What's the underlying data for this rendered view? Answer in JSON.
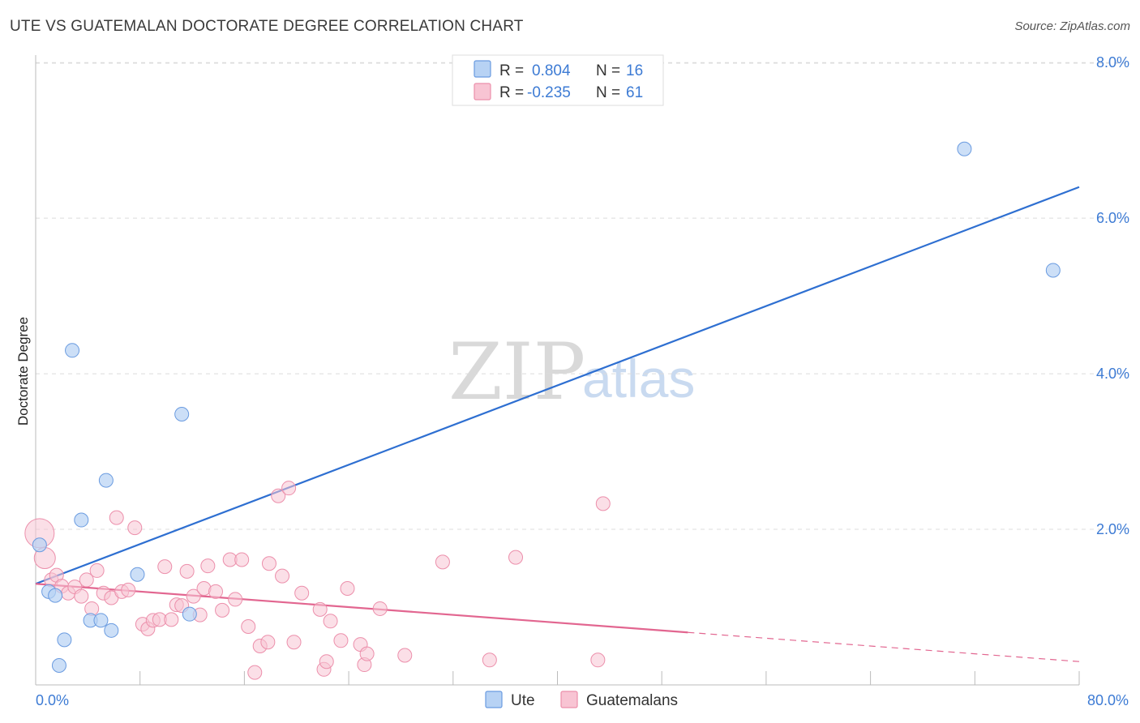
{
  "header": {
    "title": "UTE VS GUATEMALAN DOCTORATE DEGREE CORRELATION CHART",
    "source": "Source: ZipAtlas.com"
  },
  "watermark": {
    "zip": "ZIP",
    "atlas": "atlas"
  },
  "legend": {
    "rows": [
      {
        "r_label": "R =",
        "r_value": "0.804",
        "n_label": "N =",
        "n_value": "16",
        "color": "#9ec3ef"
      },
      {
        "r_label": "R =",
        "r_value": "-0.235",
        "n_label": "N =",
        "n_value": "61",
        "color": "#f5b6c8"
      }
    ]
  },
  "bottom_legend": {
    "ute": "Ute",
    "guatemalans": "Guatemalans"
  },
  "colors": {
    "ute_fill": "#b7d2f4",
    "ute_stroke": "#6a9be0",
    "ute_line": "#2e6fd1",
    "guat_fill": "#f8c4d3",
    "guat_stroke": "#ec8fab",
    "guat_line": "#e26690",
    "grid": "#dcdcdc",
    "tick_text": "#3d7bd4"
  },
  "chart_data": {
    "type": "scatter",
    "title": "UTE VS GUATEMALAN DOCTORATE DEGREE CORRELATION CHART",
    "xlabel": "",
    "ylabel": "Doctorate Degree",
    "xlim": [
      0,
      80
    ],
    "ylim": [
      0,
      8.2
    ],
    "x_tick_labels": [
      "0.0%",
      "80.0%"
    ],
    "y_ticks": [
      {
        "value": 2,
        "label": "2.0%"
      },
      {
        "value": 4,
        "label": "4.0%"
      },
      {
        "value": 6,
        "label": "6.0%"
      },
      {
        "value": 8,
        "label": "8.0%"
      }
    ],
    "series": [
      {
        "name": "Ute",
        "r": 0.804,
        "n": 16,
        "points": [
          [
            0.3,
            1.8
          ],
          [
            1.0,
            1.2
          ],
          [
            1.5,
            1.15
          ],
          [
            1.8,
            0.25
          ],
          [
            2.2,
            0.58
          ],
          [
            2.8,
            4.3
          ],
          [
            3.5,
            2.12
          ],
          [
            4.2,
            0.83
          ],
          [
            5.0,
            0.83
          ],
          [
            5.4,
            2.63
          ],
          [
            5.8,
            0.7
          ],
          [
            7.8,
            1.42
          ],
          [
            11.2,
            3.48
          ],
          [
            11.8,
            0.91
          ],
          [
            71.2,
            6.89
          ],
          [
            78.0,
            5.33
          ]
        ],
        "trend": {
          "x0": 0,
          "y0": 1.3,
          "x1": 80,
          "y1": 6.4
        }
      },
      {
        "name": "Guatemalans",
        "r": -0.235,
        "n": 61,
        "points": [
          [
            0.3,
            1.95
          ],
          [
            0.7,
            1.63
          ],
          [
            1.2,
            1.35
          ],
          [
            1.6,
            1.41
          ],
          [
            2.0,
            1.27
          ],
          [
            2.5,
            1.18
          ],
          [
            3.0,
            1.26
          ],
          [
            3.5,
            1.14
          ],
          [
            3.9,
            1.35
          ],
          [
            4.3,
            0.98
          ],
          [
            4.7,
            1.47
          ],
          [
            5.2,
            1.18
          ],
          [
            5.8,
            1.12
          ],
          [
            6.2,
            2.15
          ],
          [
            6.6,
            1.2
          ],
          [
            7.1,
            1.22
          ],
          [
            7.6,
            2.02
          ],
          [
            8.2,
            0.78
          ],
          [
            8.6,
            0.72
          ],
          [
            9.0,
            0.83
          ],
          [
            9.5,
            0.84
          ],
          [
            9.9,
            1.52
          ],
          [
            10.4,
            0.84
          ],
          [
            10.8,
            1.03
          ],
          [
            11.2,
            1.02
          ],
          [
            11.6,
            1.46
          ],
          [
            12.1,
            1.14
          ],
          [
            12.6,
            0.9
          ],
          [
            12.9,
            1.24
          ],
          [
            13.2,
            1.53
          ],
          [
            13.8,
            1.2
          ],
          [
            14.3,
            0.96
          ],
          [
            14.9,
            1.61
          ],
          [
            15.3,
            1.1
          ],
          [
            15.8,
            1.61
          ],
          [
            16.3,
            0.75
          ],
          [
            16.8,
            0.16
          ],
          [
            17.2,
            0.5
          ],
          [
            17.8,
            0.55
          ],
          [
            17.9,
            1.56
          ],
          [
            18.6,
            2.43
          ],
          [
            18.9,
            1.4
          ],
          [
            19.4,
            2.53
          ],
          [
            19.8,
            0.55
          ],
          [
            20.4,
            1.18
          ],
          [
            21.8,
            0.97
          ],
          [
            22.1,
            0.2
          ],
          [
            22.3,
            0.3
          ],
          [
            22.6,
            0.82
          ],
          [
            23.4,
            0.57
          ],
          [
            23.9,
            1.24
          ],
          [
            24.9,
            0.52
          ],
          [
            25.2,
            0.26
          ],
          [
            25.4,
            0.4
          ],
          [
            26.4,
            0.98
          ],
          [
            28.3,
            0.38
          ],
          [
            31.2,
            1.58
          ],
          [
            34.8,
            0.32
          ],
          [
            36.8,
            1.64
          ],
          [
            43.1,
            0.32
          ],
          [
            43.5,
            2.33
          ]
        ],
        "trend": {
          "x0": 0,
          "y0": 1.3,
          "x1": 80,
          "y1": 0.3,
          "solid_until_x": 50
        }
      }
    ]
  }
}
